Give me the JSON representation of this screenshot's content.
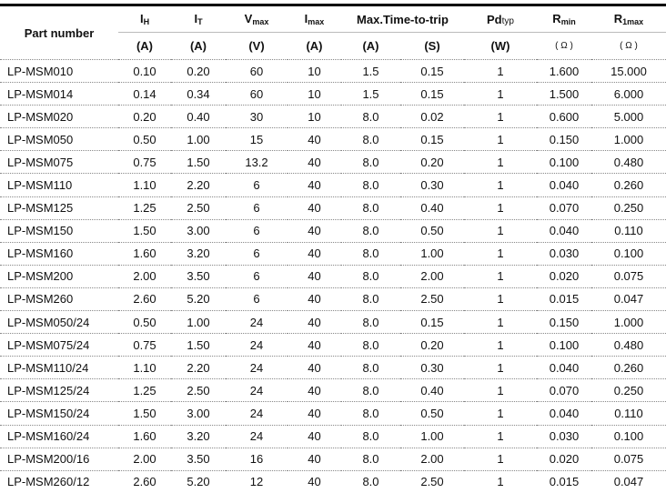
{
  "header": {
    "part_number": "Part number",
    "cols": [
      {
        "main": "I",
        "sub": "H",
        "unit": "(A)"
      },
      {
        "main": "I",
        "sub": "T",
        "unit": "(A)"
      },
      {
        "main": "V",
        "sub": "max",
        "unit": "(V)"
      },
      {
        "main": "I",
        "sub": "max",
        "unit": "(A)"
      },
      {
        "main": "Max.Time-to-trip",
        "sub": "",
        "unit": "(A)",
        "unit2": "(S)"
      },
      {
        "main": "Pd",
        "sub": "typ",
        "unit": "(W)"
      },
      {
        "main": "R",
        "sub": "min",
        "unit": "( Ω )"
      },
      {
        "main": "R",
        "sub": "1max",
        "unit": "( Ω )"
      }
    ]
  },
  "rows": [
    [
      "LP-MSM010",
      "0.10",
      "0.20",
      "60",
      "10",
      "1.5",
      "0.15",
      "1",
      "1.600",
      "15.000"
    ],
    [
      "LP-MSM014",
      "0.14",
      "0.34",
      "60",
      "10",
      "1.5",
      "0.15",
      "1",
      "1.500",
      "6.000"
    ],
    [
      "LP-MSM020",
      "0.20",
      "0.40",
      "30",
      "10",
      "8.0",
      "0.02",
      "1",
      "0.600",
      "5.000"
    ],
    [
      "LP-MSM050",
      "0.50",
      "1.00",
      "15",
      "40",
      "8.0",
      "0.15",
      "1",
      "0.150",
      "1.000"
    ],
    [
      "LP-MSM075",
      "0.75",
      "1.50",
      "13.2",
      "40",
      "8.0",
      "0.20",
      "1",
      "0.100",
      "0.480"
    ],
    [
      "LP-MSM110",
      "1.10",
      "2.20",
      "6",
      "40",
      "8.0",
      "0.30",
      "1",
      "0.040",
      "0.260"
    ],
    [
      "LP-MSM125",
      "1.25",
      "2.50",
      "6",
      "40",
      "8.0",
      "0.40",
      "1",
      "0.070",
      "0.250"
    ],
    [
      "LP-MSM150",
      "1.50",
      "3.00",
      "6",
      "40",
      "8.0",
      "0.50",
      "1",
      "0.040",
      "0.110"
    ],
    [
      "LP-MSM160",
      "1.60",
      "3.20",
      "6",
      "40",
      "8.0",
      "1.00",
      "1",
      "0.030",
      "0.100"
    ],
    [
      "LP-MSM200",
      "2.00",
      "3.50",
      "6",
      "40",
      "8.0",
      "2.00",
      "1",
      "0.020",
      "0.075"
    ],
    [
      "LP-MSM260",
      "2.60",
      "5.20",
      "6",
      "40",
      "8.0",
      "2.50",
      "1",
      "0.015",
      "0.047"
    ],
    [
      "LP-MSM050/24",
      "0.50",
      "1.00",
      "24",
      "40",
      "8.0",
      "0.15",
      "1",
      "0.150",
      "1.000"
    ],
    [
      "LP-MSM075/24",
      "0.75",
      "1.50",
      "24",
      "40",
      "8.0",
      "0.20",
      "1",
      "0.100",
      "0.480"
    ],
    [
      "LP-MSM110/24",
      "1.10",
      "2.20",
      "24",
      "40",
      "8.0",
      "0.30",
      "1",
      "0.040",
      "0.260"
    ],
    [
      "LP-MSM125/24",
      "1.25",
      "2.50",
      "24",
      "40",
      "8.0",
      "0.40",
      "1",
      "0.070",
      "0.250"
    ],
    [
      "LP-MSM150/24",
      "1.50",
      "3.00",
      "24",
      "40",
      "8.0",
      "0.50",
      "1",
      "0.040",
      "0.110"
    ],
    [
      "LP-MSM160/24",
      "1.60",
      "3.20",
      "24",
      "40",
      "8.0",
      "1.00",
      "1",
      "0.030",
      "0.100"
    ],
    [
      "LP-MSM200/16",
      "2.00",
      "3.50",
      "16",
      "40",
      "8.0",
      "2.00",
      "1",
      "0.020",
      "0.075"
    ],
    [
      "LP-MSM260/12",
      "2.60",
      "5.20",
      "12",
      "40",
      "8.0",
      "2.50",
      "1",
      "0.015",
      "0.047"
    ]
  ]
}
